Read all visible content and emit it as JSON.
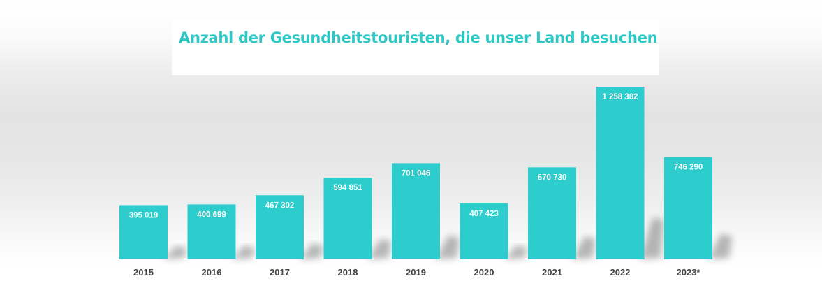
{
  "chart_data": {
    "type": "bar",
    "title": "Anzahl der Gesundheitstouristen, die unser Land besuchen",
    "categories": [
      "2015",
      "2016",
      "2017",
      "2018",
      "2019",
      "2020",
      "2021",
      "2022",
      "2023*"
    ],
    "values": [
      395019,
      400699,
      467302,
      594851,
      701046,
      407423,
      670730,
      1258382,
      746290
    ],
    "value_labels": [
      "395 019",
      "400 699",
      "467 302",
      "594 851",
      "701 046",
      "407 423",
      "670 730",
      "1 258 382",
      "746 290"
    ],
    "xlabel": "",
    "ylabel": "",
    "ylim": [
      0,
      1300000
    ],
    "grid": false,
    "legend": "none"
  },
  "colors": {
    "bar": "#2ecdcd",
    "title": "#2fc6c6",
    "tick_label": "#444444",
    "value_label": "#ffffff"
  }
}
